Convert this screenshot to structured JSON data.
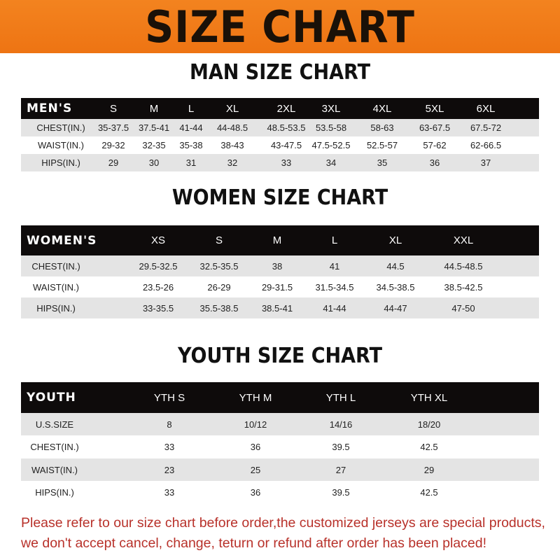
{
  "header": {
    "title": "SIZE CHART",
    "banner_color": "#f07a1a"
  },
  "men": {
    "title": "MAN SIZE CHART",
    "columns": [
      "MEN'S",
      "S",
      "M",
      "L",
      "XL",
      "2XL",
      "3XL",
      "4XL",
      "5XL",
      "6XL"
    ],
    "rows": [
      [
        "CHEST(IN.)",
        "35-37.5",
        "37.5-41",
        "41-44",
        "44-48.5",
        "48.5-53.5",
        "53.5-58",
        "58-63",
        "63-67.5",
        "67.5-72"
      ],
      [
        "WAIST(IN.)",
        "29-32",
        "32-35",
        "35-38",
        "38-43",
        "43-47.5",
        "47.5-52.5",
        "52.5-57",
        "57-62",
        "62-66.5"
      ],
      [
        "HIPS(IN.)",
        "29",
        "30",
        "31",
        "32",
        "33",
        "34",
        "35",
        "36",
        "37"
      ]
    ]
  },
  "women": {
    "title": "WOMEN SIZE CHART",
    "columns": [
      "WOMEN'S",
      "XS",
      "S",
      "M",
      "L",
      "XL",
      "XXL"
    ],
    "rows": [
      [
        "CHEST(IN.)",
        "29.5-32.5",
        "32.5-35.5",
        "38",
        "41",
        "44.5",
        "44.5-48.5"
      ],
      [
        "WAIST(IN.)",
        "23.5-26",
        "26-29",
        "29-31.5",
        "31.5-34.5",
        "34.5-38.5",
        "38.5-42.5"
      ],
      [
        "HIPS(IN.)",
        "33-35.5",
        "35.5-38.5",
        "38.5-41",
        "41-44",
        "44-47",
        "47-50"
      ]
    ]
  },
  "youth": {
    "title": "YOUTH SIZE CHART",
    "columns": [
      "YOUTH",
      "YTH S",
      "YTH M",
      "YTH L",
      "YTH XL"
    ],
    "rows": [
      [
        "U.S.SIZE",
        "8",
        "10/12",
        "14/16",
        "18/20"
      ],
      [
        "CHEST(IN.)",
        "33",
        "36",
        "39.5",
        "42.5"
      ],
      [
        "WAIST(IN.)",
        "23",
        "25",
        "27",
        "29"
      ],
      [
        "HIPS(IN.)",
        "33",
        "36",
        "39.5",
        "42.5"
      ]
    ]
  },
  "footer": {
    "line1": "Please refer to our size chart before order,the customized jerseys are special products,",
    "line2": "we don't accept cancel, change, teturn or refund after order has been placed!",
    "color": "#b8312a"
  }
}
